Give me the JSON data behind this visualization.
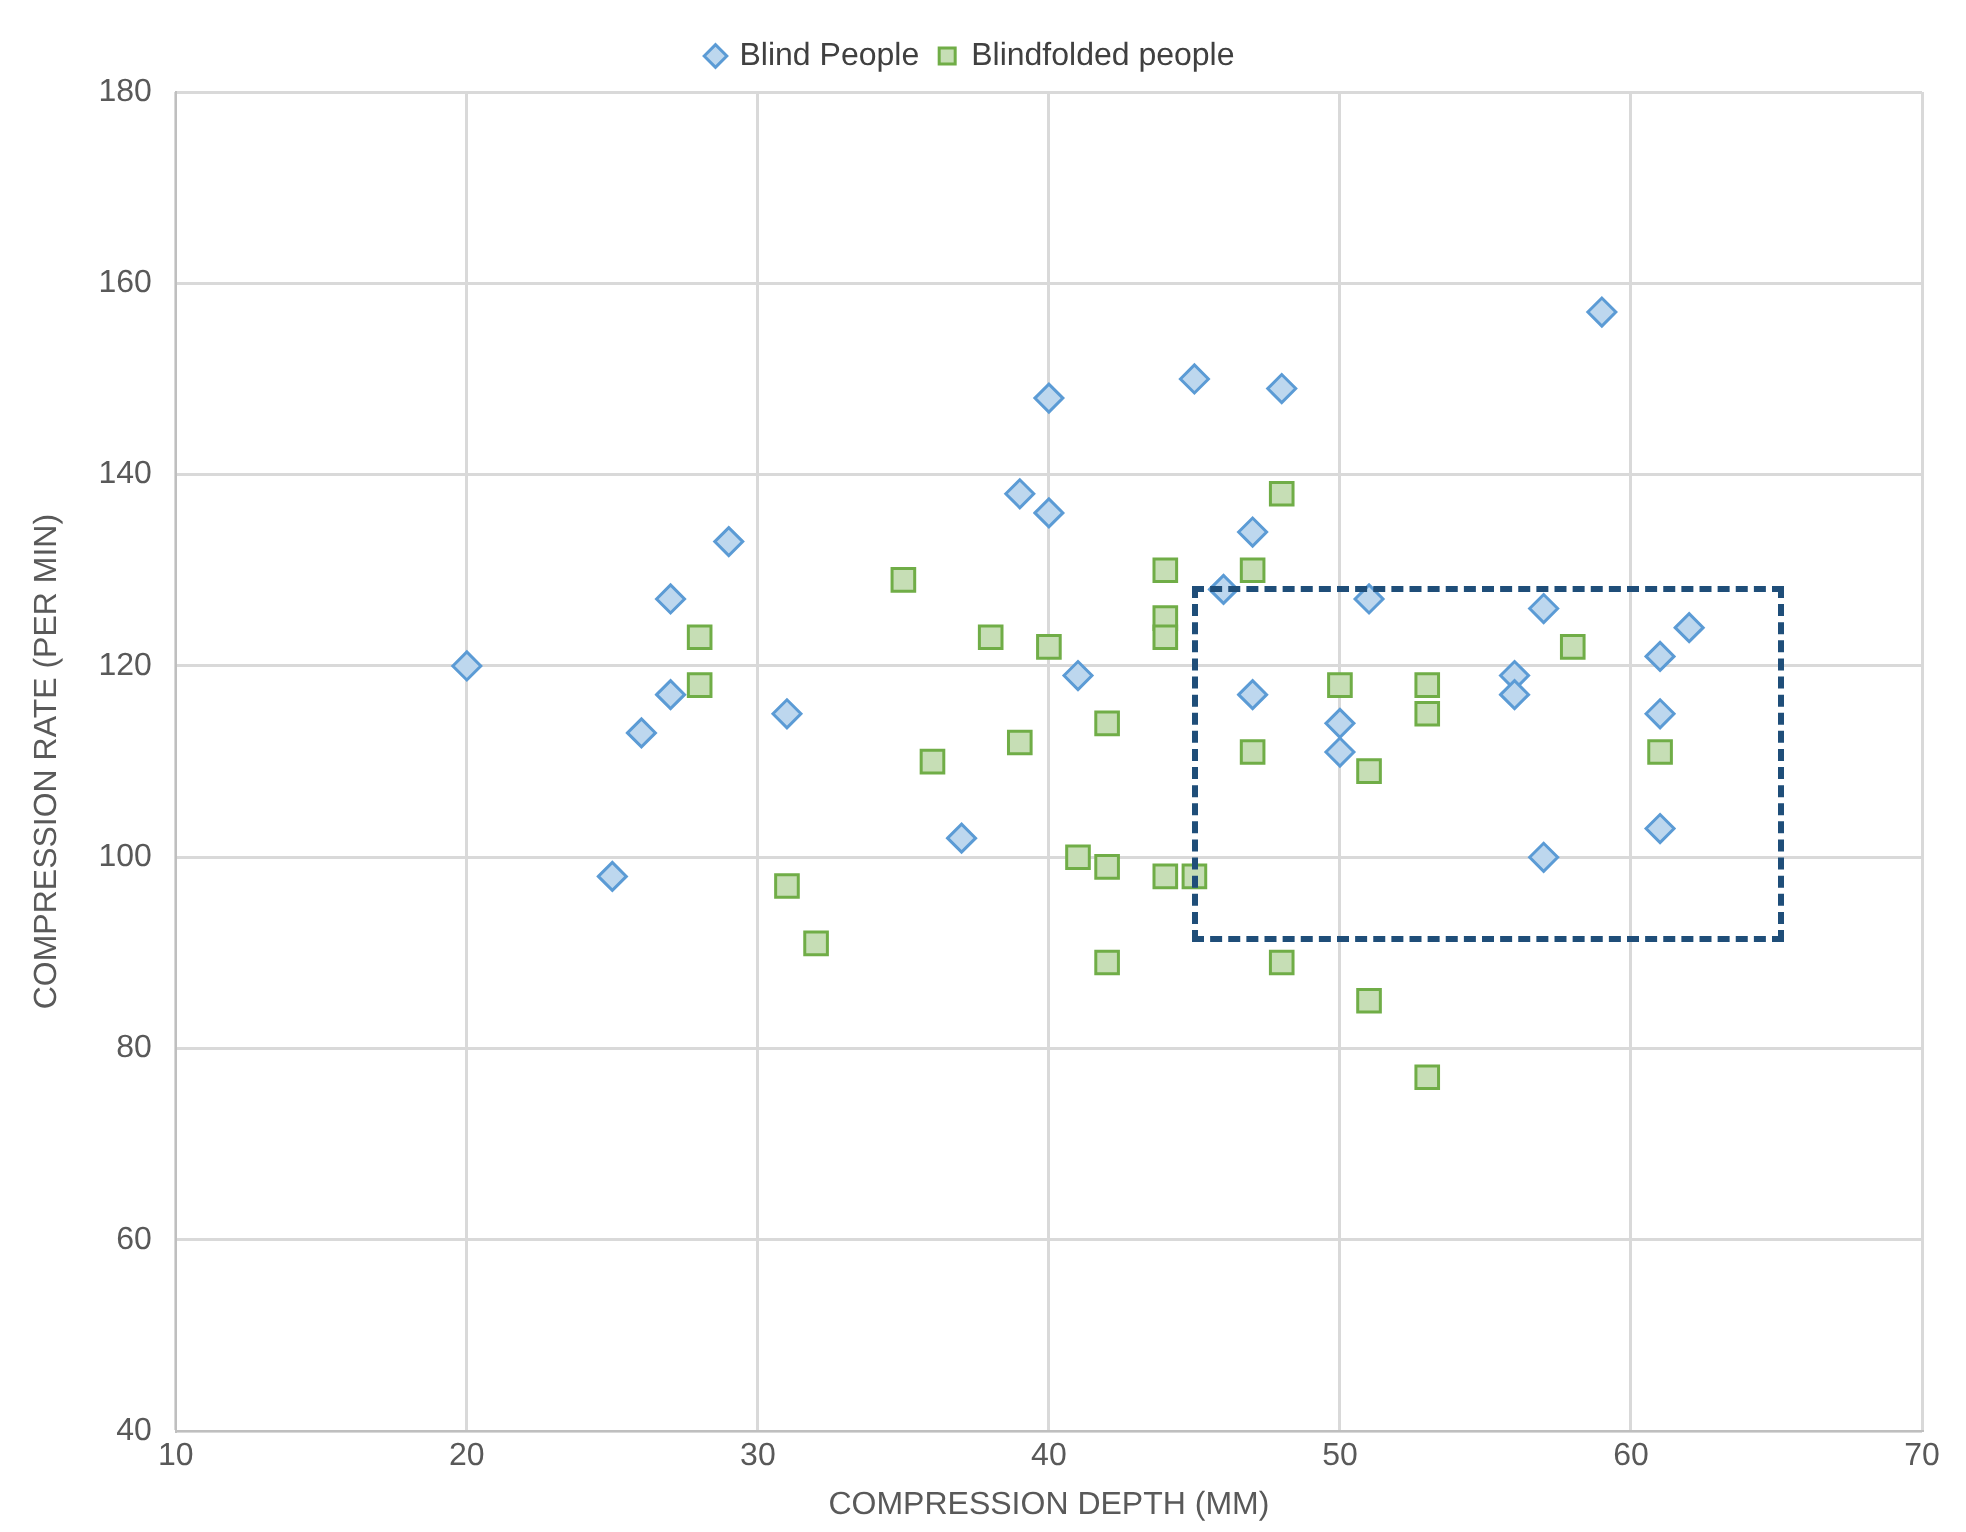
{
  "chart_data": {
    "type": "scatter",
    "xlabel": "COMPRESSION DEPTH (MM)",
    "ylabel": "COMPRESSION RATE (PER MIN)",
    "xlim": [
      10,
      70
    ],
    "xticks": [
      10,
      20,
      30,
      40,
      50,
      60,
      70
    ],
    "ylim": [
      40,
      180
    ],
    "yticks": [
      40,
      60,
      80,
      100,
      120,
      140,
      160,
      180
    ],
    "grid": true,
    "legend": "top",
    "series": [
      {
        "name": "Blind People",
        "color": "#5b9bd5",
        "marker": "diamond",
        "x": [
          20,
          25,
          26,
          27,
          27,
          29,
          31,
          37,
          39,
          40,
          40,
          41,
          45,
          46,
          47,
          47,
          48,
          50,
          50,
          51,
          56,
          56,
          57,
          57,
          59,
          61,
          61,
          61,
          62
        ],
        "values": [
          120,
          98,
          113,
          117,
          127,
          133,
          115,
          102,
          138,
          136,
          148,
          119,
          150,
          128,
          134,
          117,
          149,
          114,
          111,
          127,
          119,
          117,
          126,
          100,
          157,
          121,
          115,
          103,
          124
        ]
      },
      {
        "name": "Blindfolded people",
        "color": "#70ad47",
        "marker": "square",
        "x": [
          28,
          28,
          31,
          32,
          35,
          36,
          38,
          39,
          40,
          41,
          42,
          42,
          42,
          44,
          44,
          44,
          44,
          45,
          47,
          47,
          48,
          48,
          50,
          51,
          51,
          53,
          53,
          53,
          58,
          61
        ],
        "values": [
          123,
          118,
          97,
          91,
          129,
          110,
          123,
          112,
          122,
          100,
          114,
          99,
          89,
          130,
          125,
          123,
          98,
          98,
          130,
          111,
          138,
          89,
          118,
          109,
          85,
          118,
          115,
          77,
          122,
          111
        ]
      }
    ]
  }
}
